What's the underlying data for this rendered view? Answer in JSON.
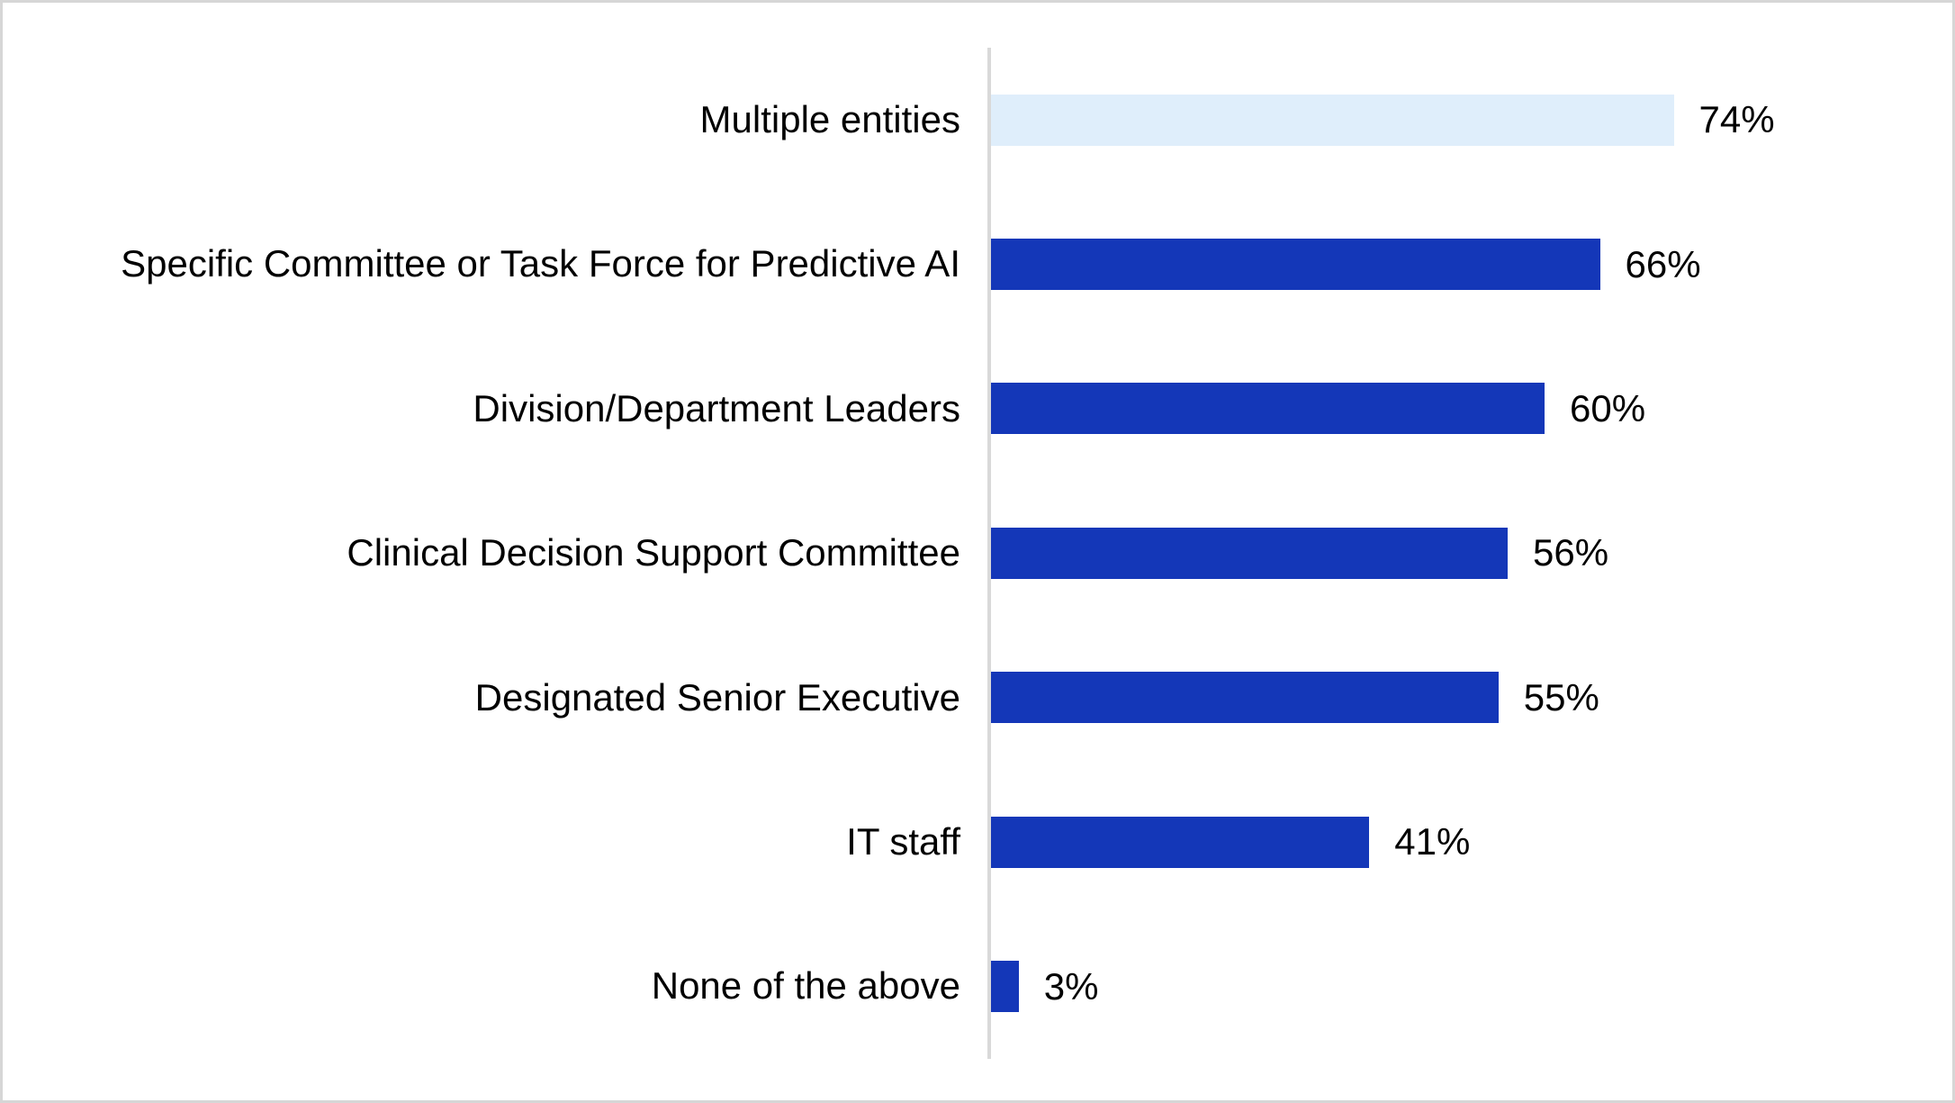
{
  "chart_data": {
    "type": "bar",
    "orientation": "horizontal",
    "title": "",
    "xlabel": "",
    "ylabel": "",
    "grid": false,
    "legend": false,
    "value_labels_position": "end-of-bar",
    "categories": [
      "Multiple entities",
      "Specific Committee or Task Force for Predictive AI",
      "Division/Department Leaders",
      "Clinical Decision Support Committee",
      "Designated Senior Executive",
      "IT staff",
      "None of the above"
    ],
    "values": [
      74,
      66,
      60,
      56,
      55,
      41,
      3
    ],
    "value_labels": [
      "74%",
      "66%",
      "60%",
      "56%",
      "55%",
      "41%",
      "3%"
    ],
    "unit": "%",
    "highlight_index": 0,
    "colors": {
      "bar_default": "#1437b8",
      "bar_highlight": "#dfeefb",
      "axis_line": "#d9d9d9",
      "frame_border": "#d6d6d6",
      "text": "#000000"
    }
  }
}
